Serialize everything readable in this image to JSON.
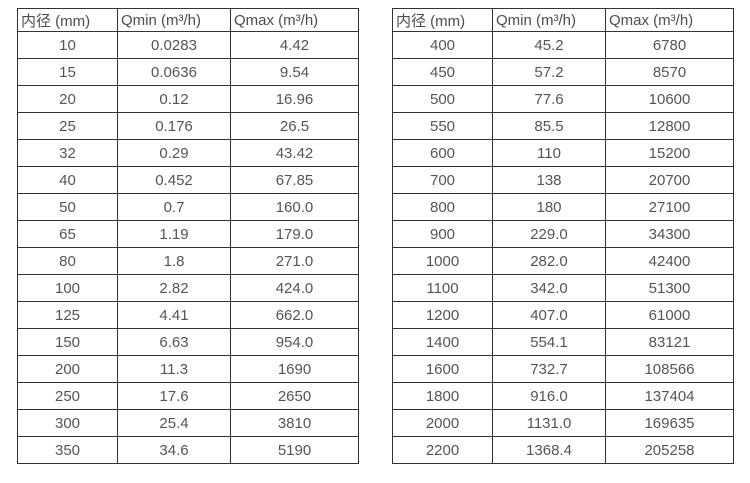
{
  "colors": {
    "background": "#ffffff",
    "table_border": "#333333",
    "header_text": "#4d4d4d",
    "cell_text": "#555555"
  },
  "left_table": {
    "headers": [
      "内径 (mm)",
      "Qmin (m³/h)",
      "Qmax (m³/h)"
    ],
    "rows": [
      [
        "10",
        "0.0283",
        "4.42"
      ],
      [
        "15",
        "0.0636",
        "9.54"
      ],
      [
        "20",
        "0.12",
        "16.96"
      ],
      [
        "25",
        "0.176",
        "26.5"
      ],
      [
        "32",
        "0.29",
        "43.42"
      ],
      [
        "40",
        "0.452",
        "67.85"
      ],
      [
        "50",
        "0.7",
        "160.0"
      ],
      [
        "65",
        "1.19",
        "179.0"
      ],
      [
        "80",
        "1.8",
        "271.0"
      ],
      [
        "100",
        "2.82",
        "424.0"
      ],
      [
        "125",
        "4.41",
        "662.0"
      ],
      [
        "150",
        "6.63",
        "954.0"
      ],
      [
        "200",
        "11.3",
        "1690"
      ],
      [
        "250",
        "17.6",
        "2650"
      ],
      [
        "300",
        "25.4",
        "3810"
      ],
      [
        "350",
        "34.6",
        "5190"
      ]
    ]
  },
  "right_table": {
    "headers": [
      "内径 (mm)",
      "Qmin (m³/h)",
      "Qmax (m³/h)"
    ],
    "rows": [
      [
        "400",
        "45.2",
        "6780"
      ],
      [
        "450",
        "57.2",
        "8570"
      ],
      [
        "500",
        "77.6",
        "10600"
      ],
      [
        "550",
        "85.5",
        "12800"
      ],
      [
        "600",
        "110",
        "15200"
      ],
      [
        "700",
        "138",
        "20700"
      ],
      [
        "800",
        "180",
        "27100"
      ],
      [
        "900",
        "229.0",
        "34300"
      ],
      [
        "1000",
        "282.0",
        "42400"
      ],
      [
        "1100",
        "342.0",
        "51300"
      ],
      [
        "1200",
        "407.0",
        "61000"
      ],
      [
        "1400",
        "554.1",
        "83121"
      ],
      [
        "1600",
        "732.7",
        "108566"
      ],
      [
        "1800",
        "916.0",
        "137404"
      ],
      [
        "2000",
        "1131.0",
        "169635"
      ],
      [
        "2200",
        "1368.4",
        "205258"
      ]
    ]
  }
}
